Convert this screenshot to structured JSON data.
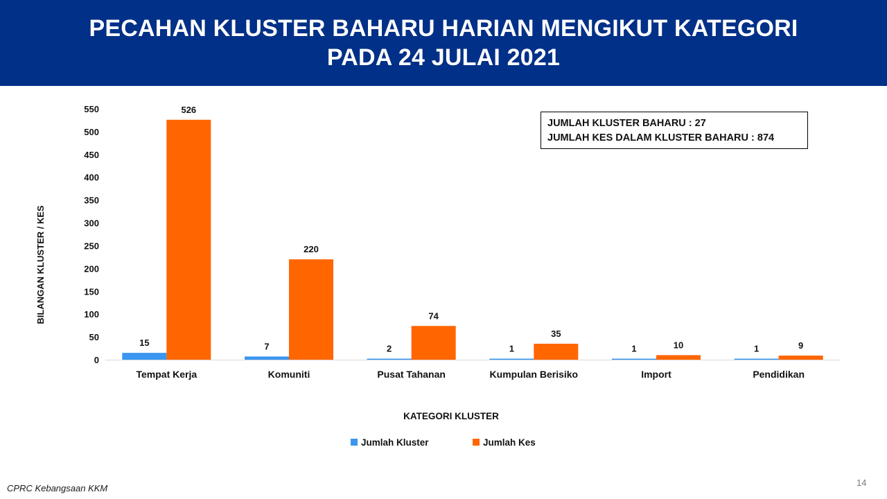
{
  "header": {
    "title_line1": "PECAHAN KLUSTER BAHARU HARIAN MENGIKUT KATEGORI",
    "title_line2": "PADA 24 JULAI 2021"
  },
  "summary_box": {
    "line1": "JUMLAH KLUSTER BAHARU : 27",
    "line2": "JUMLAH KES DALAM KLUSTER BAHARU : 874"
  },
  "footer": {
    "source": "CPRC Kebangsaan KKM",
    "page_number": "14"
  },
  "chart_data": {
    "type": "bar",
    "categories": [
      "Tempat Kerja",
      "Komuniti",
      "Pusat Tahanan",
      "Kumpulan Berisiko",
      "Import",
      "Pendidikan"
    ],
    "series": [
      {
        "name": "Jumlah Kluster",
        "color": "#3a96f0",
        "values": [
          15,
          7,
          2,
          1,
          1,
          1
        ]
      },
      {
        "name": "Jumlah Kes",
        "color": "#ff6600",
        "values": [
          526,
          220,
          74,
          35,
          10,
          9
        ]
      }
    ],
    "xlabel": "KATEGORI KLUSTER",
    "ylabel": "BILANGAN KLUSTER / KES",
    "ylim": [
      0,
      550
    ],
    "yticks": [
      0,
      50,
      100,
      150,
      200,
      250,
      300,
      350,
      400,
      450,
      500,
      550
    ],
    "grid": false,
    "data_labels": true,
    "legend_position": "bottom"
  }
}
